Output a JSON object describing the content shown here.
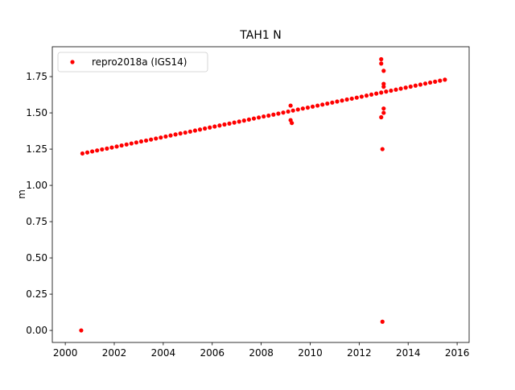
{
  "chart_data": {
    "type": "scatter",
    "title": "TAH1 N",
    "ylabel": "m",
    "legend": "upper left",
    "series": [
      {
        "name": "repro2018a (IGS14)",
        "color": "#ff0000",
        "x": [
          2000.7,
          2000.9,
          2001.1,
          2001.3,
          2001.5,
          2001.7,
          2001.9,
          2002.1,
          2002.3,
          2002.5,
          2002.7,
          2002.9,
          2003.1,
          2003.3,
          2003.5,
          2003.7,
          2003.9,
          2004.1,
          2004.3,
          2004.5,
          2004.7,
          2004.9,
          2005.1,
          2005.3,
          2005.5,
          2005.7,
          2005.9,
          2006.1,
          2006.3,
          2006.5,
          2006.7,
          2006.9,
          2007.1,
          2007.3,
          2007.5,
          2007.7,
          2007.9,
          2008.1,
          2008.3,
          2008.5,
          2008.7,
          2008.9,
          2009.1,
          2009.3,
          2009.5,
          2009.7,
          2009.9,
          2010.1,
          2010.3,
          2010.5,
          2010.7,
          2010.9,
          2011.1,
          2011.3,
          2011.5,
          2011.7,
          2011.9,
          2012.1,
          2012.3,
          2012.5,
          2012.7,
          2012.9,
          2013.1,
          2013.3,
          2013.5,
          2013.7,
          2013.9,
          2014.1,
          2014.3,
          2014.5,
          2014.7,
          2014.9,
          2015.1,
          2015.3,
          2015.5,
          2000.65,
          2009.2,
          2009.2,
          2009.25,
          2012.9,
          2012.9,
          2013.0,
          2012.9,
          2013.0,
          2013.0,
          2012.95,
          2012.95,
          2013.0,
          2013.0
        ],
        "values": [
          1.22,
          1.227,
          1.234,
          1.241,
          1.248,
          1.254,
          1.261,
          1.268,
          1.275,
          1.282,
          1.289,
          1.296,
          1.303,
          1.309,
          1.316,
          1.323,
          1.33,
          1.337,
          1.344,
          1.351,
          1.358,
          1.364,
          1.371,
          1.378,
          1.385,
          1.392,
          1.399,
          1.406,
          1.413,
          1.42,
          1.426,
          1.433,
          1.44,
          1.447,
          1.454,
          1.461,
          1.468,
          1.475,
          1.481,
          1.488,
          1.495,
          1.502,
          1.509,
          1.516,
          1.523,
          1.53,
          1.536,
          1.543,
          1.55,
          1.557,
          1.564,
          1.571,
          1.578,
          1.585,
          1.592,
          1.598,
          1.605,
          1.612,
          1.619,
          1.626,
          1.633,
          1.64,
          1.647,
          1.653,
          1.66,
          1.667,
          1.674,
          1.681,
          1.688,
          1.695,
          1.702,
          1.709,
          1.715,
          1.722,
          1.729,
          0.0,
          1.55,
          1.45,
          1.43,
          1.87,
          1.84,
          1.79,
          1.47,
          1.53,
          1.5,
          1.25,
          0.06,
          1.7,
          1.68
        ]
      }
    ],
    "xlim": [
      1999.47,
      2016.49
    ],
    "ylim": [
      -0.083,
      1.956
    ],
    "xticks": [
      2000,
      2002,
      2004,
      2006,
      2008,
      2010,
      2012,
      2014,
      2016
    ],
    "yticks": [
      {
        "value": 0,
        "label": "0.00"
      },
      {
        "value": 0.25,
        "label": "0.25"
      },
      {
        "value": 0.5,
        "label": "0.50"
      },
      {
        "value": 0.75,
        "label": "0.75"
      },
      {
        "value": 1,
        "label": "1.00"
      },
      {
        "value": 1.25,
        "label": "1.25"
      },
      {
        "value": 1.5,
        "label": "1.50"
      },
      {
        "value": 1.75,
        "label": "1.75"
      }
    ]
  }
}
